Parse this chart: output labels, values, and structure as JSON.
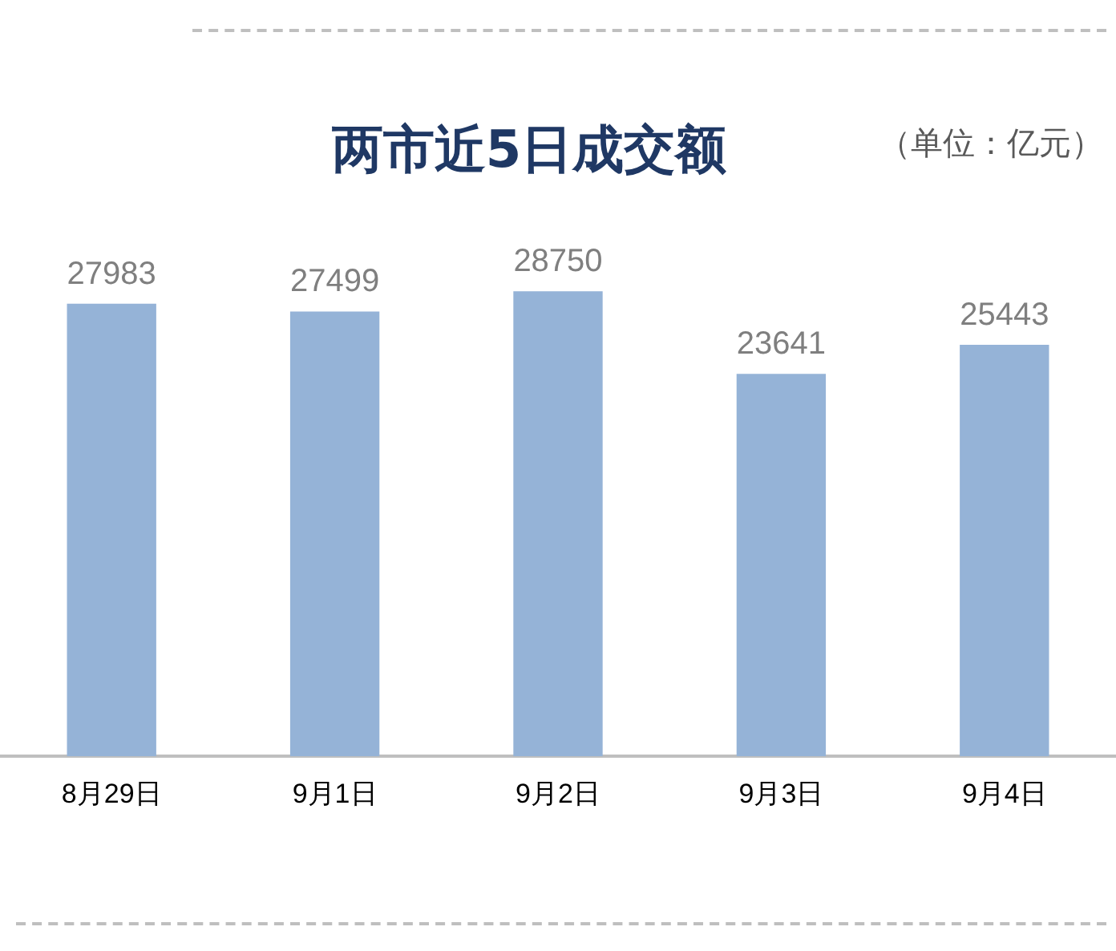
{
  "chart_data": {
    "type": "bar",
    "title": "两市近5日成交额",
    "subtitle": "（单位：亿元）",
    "categories": [
      "8月29日",
      "9月1日",
      "9月2日",
      "9月3日",
      "9月4日"
    ],
    "values": [
      27983,
      27499,
      28750,
      23641,
      25443
    ],
    "color": "#95b3d7",
    "data_labels": true,
    "grid": false,
    "legend": false
  }
}
